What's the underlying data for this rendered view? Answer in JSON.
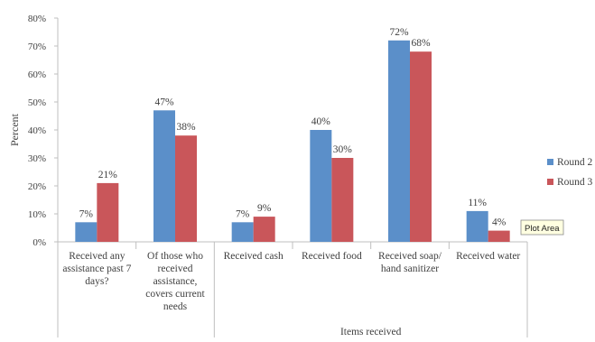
{
  "chart_data": {
    "type": "bar",
    "ylabel": "Percent",
    "xlabel": "",
    "group_label": "Items received",
    "ylim": [
      0,
      80
    ],
    "yticks": [
      "0%",
      "10%",
      "20%",
      "30%",
      "40%",
      "50%",
      "60%",
      "70%",
      "80%"
    ],
    "grid": false,
    "legend_position": "right",
    "categories": [
      [
        "Received any",
        "assistance past 7",
        "days?"
      ],
      [
        "Of those who",
        "received",
        "assistance,",
        "covers current",
        "needs"
      ],
      [
        "Received cash"
      ],
      [
        "Received food"
      ],
      [
        "Received soap/",
        "hand sanitizer"
      ],
      [
        "Received water"
      ]
    ],
    "series": [
      {
        "name": "Round 2",
        "color": "#5b8fc9",
        "values": [
          7,
          47,
          7,
          40,
          72,
          11
        ],
        "labels": [
          "7%",
          "47%",
          "7%",
          "40%",
          "72%",
          "11%"
        ]
      },
      {
        "name": "Round 3",
        "color": "#c9565a",
        "values": [
          21,
          38,
          9,
          30,
          68,
          4
        ],
        "labels": [
          "21%",
          "38%",
          "9%",
          "30%",
          "68%",
          "4%"
        ]
      }
    ],
    "tooltip": "Plot Area"
  }
}
